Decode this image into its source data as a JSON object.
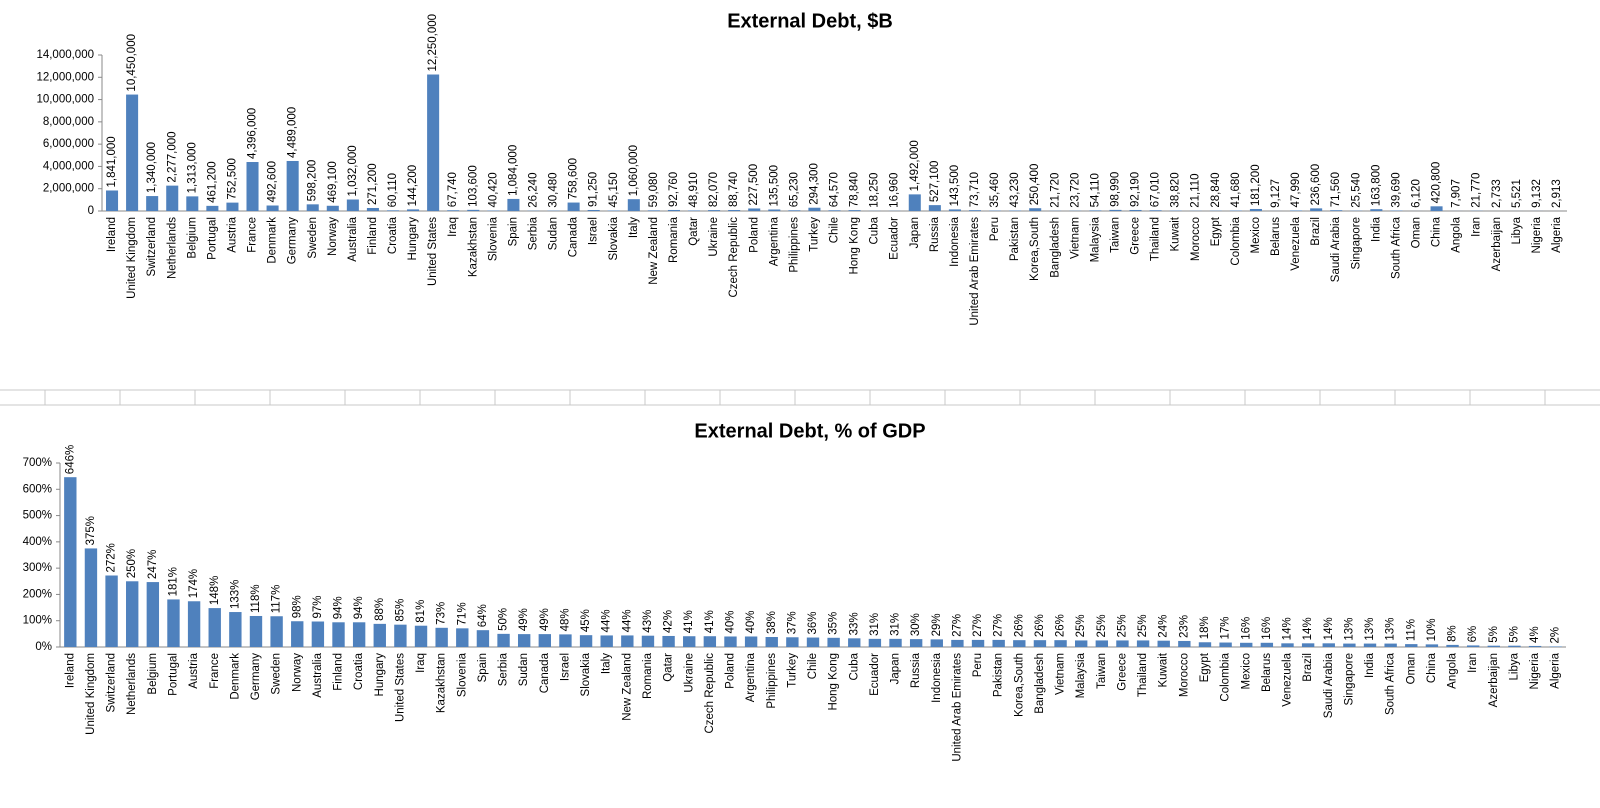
{
  "chart_data": [
    {
      "type": "bar",
      "title": "External Debt, $B",
      "color": "#4f81bd",
      "categories": [
        "Ireland",
        "United Kingdom",
        "Switzerland",
        "Netherlands",
        "Belgium",
        "Portugal",
        "Austria",
        "France",
        "Denmark",
        "Germany",
        "Sweden",
        "Norway",
        "Australia",
        "Finland",
        "Croatia",
        "Hungary",
        "United States",
        "Iraq",
        "Kazakhstan",
        "Slovenia",
        "Spain",
        "Serbia",
        "Sudan",
        "Canada",
        "Israel",
        "Slovakia",
        "Italy",
        "New Zealand",
        "Romania",
        "Qatar",
        "Ukraine",
        "Czech Republic",
        "Poland",
        "Argentina",
        "Philippines",
        "Turkey",
        "Chile",
        "Hong Kong",
        "Cuba",
        "Ecuador",
        "Japan",
        "Russia",
        "Indonesia",
        "United Arab Emirates",
        "Peru",
        "Pakistan",
        "Korea,South",
        "Bangladesh",
        "Vietnam",
        "Malaysia",
        "Taiwan",
        "Greece",
        "Thailand",
        "Kuwait",
        "Morocco",
        "Egypt",
        "Colombia",
        "Mexico",
        "Belarus",
        "Venezuela",
        "Brazil",
        "Saudi Arabia",
        "Singapore",
        "India",
        "South Africa",
        "Oman",
        "China",
        "Angola",
        "Iran",
        "Azerbaijan",
        "Libya",
        "Nigeria",
        "Algeria"
      ],
      "values": [
        1841000,
        10450000,
        1340000,
        2277000,
        1313000,
        461200,
        752500,
        4396000,
        492600,
        4489000,
        598200,
        469100,
        1032000,
        271200,
        60110,
        144200,
        12250000,
        67740,
        103600,
        40420,
        1084000,
        26240,
        30480,
        758600,
        91250,
        45150,
        1060000,
        59080,
        92760,
        48910,
        82070,
        88740,
        227500,
        135500,
        65230,
        294300,
        64570,
        78840,
        18250,
        16960,
        1492000,
        527100,
        143500,
        73710,
        35460,
        43230,
        250400,
        21720,
        23720,
        54110,
        98990,
        92190,
        67010,
        38820,
        21110,
        28840,
        41680,
        181200,
        9127,
        47990,
        236600,
        71560,
        25540,
        163800,
        39690,
        6120,
        420800,
        7907,
        21770,
        2733,
        5521,
        9132,
        2913
      ],
      "value_labels": [
        "1,841,000",
        "10,450,000",
        "1,340,000",
        "2,277,000",
        "1,313,000",
        "461,200",
        "752,500",
        "4,396,000",
        "492,600",
        "4,489,000",
        "598,200",
        "469,100",
        "1,032,000",
        "271,200",
        "60,110",
        "144,200",
        "12,250,000",
        "67,740",
        "103,600",
        "40,420",
        "1,084,000",
        "26,240",
        "30,480",
        "758,600",
        "91,250",
        "45,150",
        "1,060,000",
        "59,080",
        "92,760",
        "48,910",
        "82,070",
        "88,740",
        "227,500",
        "135,500",
        "65,230",
        "294,300",
        "64,570",
        "78,840",
        "18,250",
        "16,960",
        "1,492,000",
        "527,100",
        "143,500",
        "73,710",
        "35,460",
        "43,230",
        "250,400",
        "21,720",
        "23,720",
        "54,110",
        "98,990",
        "92,190",
        "67,010",
        "38,820",
        "21,110",
        "28,840",
        "41,680",
        "181,200",
        "9,127",
        "47,990",
        "236,600",
        "71,560",
        "25,540",
        "163,800",
        "39,690",
        "6,120",
        "420,800",
        "7,907",
        "21,770",
        "2,733",
        "5,521",
        "9,132",
        "2,913"
      ],
      "ylim": [
        0,
        14000000
      ],
      "yticks": [
        0,
        {
          "value": 2000000,
          "label": "2,000,000"
        },
        {
          "value": 4000000,
          "label": "4,000,000"
        },
        {
          "value": 6000000,
          "label": "6,000,000"
        },
        {
          "value": 8000000,
          "label": "8,000,000"
        },
        {
          "value": 10000000,
          "label": "10,000,000"
        },
        {
          "value": 12000000,
          "label": "12,000,000"
        },
        {
          "value": 14000000,
          "label": "14,000,000"
        }
      ]
    },
    {
      "type": "bar",
      "title": "External Debt, % of GDP",
      "color": "#4f81bd",
      "categories": [
        "Ireland",
        "United Kingdom",
        "Switzerland",
        "Netherlands",
        "Belgium",
        "Portugal",
        "Austria",
        "France",
        "Denmark",
        "Germany",
        "Sweden",
        "Norway",
        "Australia",
        "Finland",
        "Croatia",
        "Hungary",
        "United States",
        "Iraq",
        "Kazakhstan",
        "Slovenia",
        "Spain",
        "Serbia",
        "Sudan",
        "Canada",
        "Israel",
        "Slovakia",
        "Italy",
        "New Zealand",
        "Romania",
        "Qatar",
        "Ukraine",
        "Czech Republic",
        "Poland",
        "Argentina",
        "Philippines",
        "Turkey",
        "Chile",
        "Hong Kong",
        "Cuba",
        "Ecuador",
        "Japan",
        "Russia",
        "Indonesia",
        "United Arab Emirates",
        "Peru",
        "Pakistan",
        "Korea,South",
        "Bangladesh",
        "Vietnam",
        "Malaysia",
        "Taiwan",
        "Greece",
        "Thailand",
        "Kuwait",
        "Morocco",
        "Egypt",
        "Colombia",
        "Mexico",
        "Belarus",
        "Venezuela",
        "Brazil",
        "Saudi Arabia",
        "Singapore",
        "India",
        "South Africa",
        "Oman",
        "China",
        "Angola",
        "Iran",
        "Azerbaijan",
        "Libya",
        "Nigeria",
        "Algeria"
      ],
      "values": [
        646,
        375,
        272,
        250,
        247,
        181,
        174,
        148,
        133,
        118,
        117,
        98,
        97,
        94,
        94,
        88,
        85,
        81,
        73,
        71,
        64,
        50,
        49,
        49,
        48,
        45,
        44,
        44,
        43,
        42,
        41,
        41,
        40,
        40,
        38,
        37,
        36,
        35,
        33,
        31,
        31,
        30,
        29,
        27,
        27,
        27,
        26,
        26,
        26,
        25,
        25,
        25,
        25,
        24,
        23,
        18,
        17,
        16,
        16,
        14,
        14,
        14,
        13,
        13,
        13,
        11,
        10,
        8,
        6,
        5,
        5,
        4,
        2
      ],
      "value_labels": [
        "646%",
        "375%",
        "272%",
        "250%",
        "247%",
        "181%",
        "174%",
        "148%",
        "133%",
        "118%",
        "117%",
        "98%",
        "97%",
        "94%",
        "94%",
        "88%",
        "85%",
        "81%",
        "73%",
        "71%",
        "64%",
        "50%",
        "49%",
        "49%",
        "48%",
        "45%",
        "44%",
        "44%",
        "43%",
        "42%",
        "41%",
        "41%",
        "40%",
        "40%",
        "38%",
        "37%",
        "36%",
        "35%",
        "33%",
        "31%",
        "31%",
        "30%",
        "29%",
        "27%",
        "27%",
        "27%",
        "26%",
        "26%",
        "26%",
        "25%",
        "25%",
        "25%",
        "25%",
        "24%",
        "23%",
        "18%",
        "17%",
        "16%",
        "16%",
        "14%",
        "14%",
        "14%",
        "13%",
        "13%",
        "13%",
        "11%",
        "10%",
        "8%",
        "6%",
        "5%",
        "5%",
        "4%",
        "2%"
      ],
      "ylim": [
        0,
        700
      ],
      "yticks": [
        {
          "value": 0,
          "label": "0%"
        },
        {
          "value": 100,
          "label": "100%"
        },
        {
          "value": 200,
          "label": "200%"
        },
        {
          "value": 300,
          "label": "300%"
        },
        {
          "value": 400,
          "label": "400%"
        },
        {
          "value": 500,
          "label": "500%"
        },
        {
          "value": 600,
          "label": "600%"
        },
        {
          "value": 700,
          "label": "700%"
        }
      ]
    }
  ]
}
